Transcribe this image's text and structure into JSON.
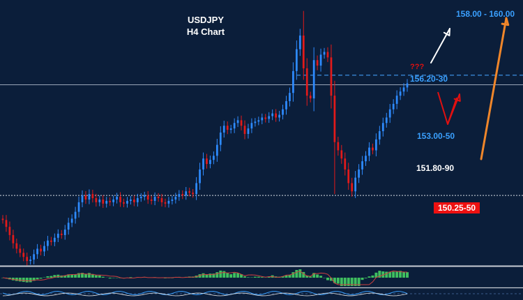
{
  "header": {
    "title": "USDJPY",
    "subtitle": "H4 Chart"
  },
  "labels": {
    "target_high": "158.00 - 160.00",
    "resistance": "156.20-30",
    "question": "???",
    "support_1": "153.00-50",
    "support_2": "151.80-90",
    "support_3": "150.25-50"
  },
  "colors": {
    "background": "#0b1e3a",
    "bull_candle": "#2e8bff",
    "bear_candle": "#e31a1a",
    "label_blue": "#3aa0ff",
    "badge_red": "#ee1111",
    "arrow_white": "#ffffff",
    "arrow_red": "#e01010",
    "arrow_orange": "#f0862a",
    "osc_green": "#3fbf5f",
    "dashed_line": "#3d8fe0"
  },
  "chart_data": {
    "type": "candlestick",
    "instrument": "USDJPY",
    "timeframe": "H4",
    "price_levels": {
      "resistance_dashed": 156.25,
      "current_solid": 155.9,
      "support_dotted": 151.85
    },
    "price_range": [
      149.3,
      159.0
    ],
    "closes": [
      150.95,
      150.7,
      150.4,
      150.1,
      149.9,
      149.75,
      149.6,
      149.45,
      149.5,
      149.7,
      149.9,
      149.8,
      150.0,
      150.2,
      150.15,
      150.3,
      150.45,
      150.4,
      150.6,
      150.85,
      151.0,
      151.25,
      151.6,
      151.85,
      151.7,
      151.9,
      151.75,
      151.6,
      151.7,
      151.55,
      151.65,
      151.6,
      151.7,
      151.8,
      151.6,
      151.55,
      151.65,
      151.7,
      151.6,
      151.75,
      151.8,
      151.85,
      151.7,
      151.65,
      151.8,
      151.75,
      151.6,
      151.55,
      151.65,
      151.7,
      151.8,
      151.9,
      151.85,
      152.0,
      151.95,
      151.9,
      152.3,
      152.8,
      153.2,
      153.0,
      153.15,
      153.3,
      153.7,
      154.15,
      154.4,
      154.25,
      154.3,
      154.5,
      154.6,
      154.4,
      154.1,
      154.3,
      154.5,
      154.55,
      154.6,
      154.7,
      154.65,
      154.75,
      154.85,
      154.7,
      154.8,
      155.0,
      155.3,
      155.6,
      156.4,
      157.2,
      157.7,
      156.5,
      155.5,
      155.4,
      156.8,
      156.6,
      157.0,
      157.1,
      156.9,
      155.5,
      153.8,
      153.5,
      153.2,
      152.8,
      152.3,
      152.0,
      152.5,
      152.8,
      153.1,
      153.3,
      153.6,
      153.5,
      153.9,
      154.2,
      154.5,
      154.7,
      155.0,
      155.2,
      155.5,
      155.65,
      155.8,
      155.95
    ]
  }
}
